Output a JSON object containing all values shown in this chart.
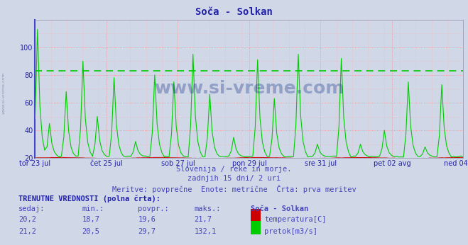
{
  "title": "Soča - Solkan",
  "bg_color": "#d0d8e8",
  "plot_bg_color": "#d0d8e8",
  "title_color": "#2020aa",
  "title_fontsize": 10,
  "xlabel_texts": [
    "tor 23 jul",
    "čet 25 jul",
    "sob 27 jul",
    "pon 29 jul",
    "sre 31 jul",
    "pet 02 avg",
    "ned 04 avg"
  ],
  "ylabel_ticks": [
    20,
    40,
    60,
    80,
    100
  ],
  "ylim": [
    20,
    120
  ],
  "grid_color_major": "#ff8888",
  "grid_color_dotted": "#ffaaaa",
  "hline_value": 83,
  "hline_color": "#00cc00",
  "temp_color": "#cc0000",
  "flow_color": "#00cc00",
  "subtitle1": "Slovenija / reke in morje.",
  "subtitle2": "zadnjih 15 dni/ 2 uri",
  "subtitle3": "Meritve: povprečne  Enote: metrične  Črta: prva meritev",
  "subtitle_color": "#4444bb",
  "subtitle_fontsize": 7.5,
  "bottom_title": "TRENUTNE VREDNOSTI (polna črta):",
  "col_headers": [
    "sedaj:",
    "min.:",
    "povpr.:",
    "maks.:",
    "Soča - Solkan"
  ],
  "row1": [
    "20,2",
    "18,7",
    "19,6",
    "21,7"
  ],
  "row2": [
    "21,2",
    "20,5",
    "29,7",
    "132,1"
  ],
  "label1": "temperatura[C]",
  "label2": "pretok[m3/s]",
  "n_points": 180,
  "spike_positions": [
    1,
    6,
    13,
    20,
    26,
    33,
    42,
    50,
    58,
    66,
    73,
    83,
    93,
    100,
    110,
    118,
    128,
    136,
    146,
    156,
    163,
    170
  ],
  "spike_heights": [
    113,
    45,
    68,
    90,
    50,
    78,
    32,
    80,
    75,
    95,
    66,
    35,
    91,
    63,
    95,
    30,
    92,
    30,
    40,
    75,
    28,
    73
  ]
}
